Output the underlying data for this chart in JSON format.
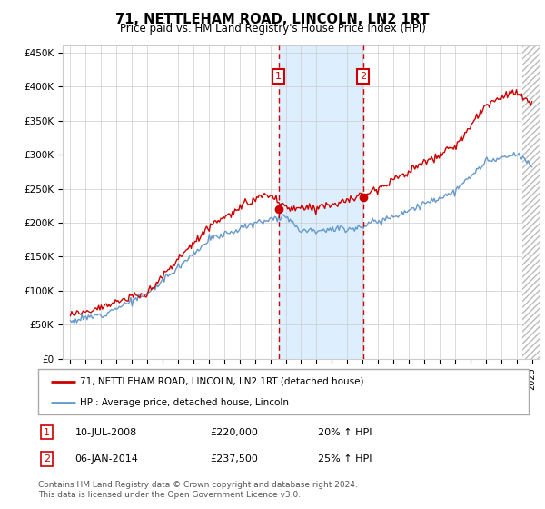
{
  "title": "71, NETTLEHAM ROAD, LINCOLN, LN2 1RT",
  "subtitle": "Price paid vs. HM Land Registry's House Price Index (HPI)",
  "red_label": "71, NETTLEHAM ROAD, LINCOLN, LN2 1RT (detached house)",
  "blue_label": "HPI: Average price, detached house, Lincoln",
  "footnote": "Contains HM Land Registry data © Crown copyright and database right 2024.\nThis data is licensed under the Open Government Licence v3.0.",
  "transaction1_date": "10-JUL-2008",
  "transaction1_price": "£220,000",
  "transaction1_hpi": "20% ↑ HPI",
  "transaction1_year": 2008.53,
  "transaction1_price_val": 220000,
  "transaction2_date": "06-JAN-2014",
  "transaction2_price": "£237,500",
  "transaction2_hpi": "25% ↑ HPI",
  "transaction2_year": 2014.02,
  "transaction2_price_val": 237500,
  "ylim": [
    0,
    460000
  ],
  "yticks": [
    0,
    50000,
    100000,
    150000,
    200000,
    250000,
    300000,
    350000,
    400000,
    450000
  ],
  "xlim_start": 1994.5,
  "xlim_end": 2025.5,
  "red_color": "#cc0000",
  "blue_color": "#6699cc",
  "shaded_color": "#ddeeff",
  "vline_color": "#cc0000",
  "background_color": "#ffffff",
  "grid_color": "#cccccc",
  "hatch_color": "#bbbbbb"
}
